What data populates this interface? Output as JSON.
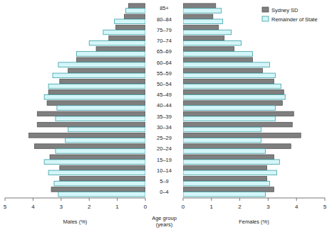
{
  "chart_data": [
    {
      "type": "bar",
      "orientation": "horizontal",
      "xlabel": "Males (%)",
      "ylabel": "Age group (years)",
      "categories": [
        "0–4",
        "5–9",
        "10–14",
        "15–19",
        "20–24",
        "25–29",
        "30–34",
        "35–39",
        "40–44",
        "45–49",
        "50–54",
        "55–59",
        "60–64",
        "65–69",
        "70–74",
        "75–79",
        "80–84",
        "85+"
      ],
      "series": [
        {
          "color": "#7f7f7f",
          "values": [
            3.35,
            3.05,
            3.05,
            3.4,
            3.95,
            4.15,
            3.85,
            3.85,
            3.5,
            3.45,
            3.05,
            2.75,
            2.45,
            1.75,
            1.3,
            1.05,
            0.75,
            0.6
          ]
        },
        {
          "color": "#d4f6f8",
          "values": [
            3.1,
            3.25,
            3.45,
            3.6,
            3.2,
            2.85,
            2.75,
            3.2,
            3.15,
            3.6,
            3.45,
            3.3,
            3.1,
            2.45,
            2.0,
            1.5,
            1.1,
            0.7
          ]
        }
      ],
      "xlim": [
        5,
        0
      ],
      "xticks": [
        5,
        4,
        3,
        2,
        1,
        0
      ]
    },
    {
      "type": "bar",
      "orientation": "horizontal",
      "xlabel": "Females (%)",
      "legend": "upper right",
      "categories": [
        "0–4",
        "5–9",
        "10–14",
        "15–19",
        "20–24",
        "25–29",
        "30–34",
        "35–39",
        "40–44",
        "45–49",
        "50–54",
        "55–59",
        "60–64",
        "65–69",
        "70–74",
        "75–79",
        "80–84",
        "85+"
      ],
      "series": [
        {
          "name": "Sydney SD",
          "color": "#7f7f7f",
          "values": [
            3.2,
            2.95,
            2.95,
            3.2,
            3.8,
            4.15,
            3.85,
            3.9,
            3.5,
            3.55,
            3.2,
            2.8,
            2.45,
            1.8,
            1.45,
            1.25,
            1.05,
            1.15
          ]
        },
        {
          "name": "Remainder of State",
          "color": "#d4f6f8",
          "values": [
            2.9,
            3.05,
            3.3,
            3.4,
            2.9,
            2.75,
            2.75,
            3.25,
            3.25,
            3.6,
            3.45,
            3.25,
            3.05,
            2.45,
            2.05,
            1.7,
            1.4,
            1.35
          ]
        }
      ],
      "xlim": [
        0,
        5
      ],
      "xticks": [
        0,
        1,
        2,
        3,
        4,
        5
      ]
    }
  ]
}
